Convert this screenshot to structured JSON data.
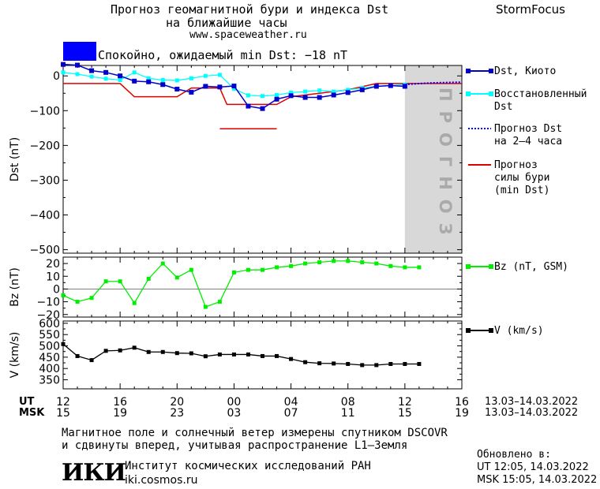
{
  "header": {
    "title_line1": "Прогноз геомагнитной бури и индекса Dst",
    "title_line2": "на ближайшие часы",
    "site": "www.spaceweather.ru",
    "brand": "StormFocus",
    "status_text": "Спокойно, ожидаемый min Dst: −18 nT",
    "status_color": "#0000ff"
  },
  "forecast_band_label": "ПРОГНОЗ",
  "time_axis": {
    "ut_label": "UT",
    "msk_label": "MSK",
    "ut_ticks": [
      "12",
      "16",
      "20",
      "00",
      "04",
      "08",
      "12",
      "16"
    ],
    "msk_ticks": [
      "15",
      "19",
      "23",
      "03",
      "07",
      "11",
      "15",
      "19"
    ],
    "ut_range": "13.03–14.03.2022",
    "msk_range": "13.03–14.03.2022"
  },
  "legend": {
    "dst": "Dst, Киото",
    "restored_line1": "Восстановленный",
    "restored_line2": "Dst",
    "forecast_line1": "Прогноз Dst",
    "forecast_line2": "на 2–4 часа",
    "storm_line1": "Прогноз",
    "storm_line2": "силы бури",
    "storm_line3": "(min Dst)",
    "bz": "Bz (nT, GSM)",
    "v": "V (km/s)"
  },
  "colors": {
    "dst": "#0000cc",
    "restored": "#00ffff",
    "forecast": "#0000ff",
    "storm": "#dd0000",
    "bz": "#00ee00",
    "v": "#000000",
    "band": "#d8d8d8"
  },
  "chart_data": [
    {
      "type": "line",
      "ylabel": "Dst (nT)",
      "ylim": [
        -510,
        30
      ],
      "yticks": [
        0,
        -100,
        -200,
        -300,
        -400,
        -500
      ],
      "x_hours_range": [
        0,
        28
      ],
      "forecast_start_hour": 24,
      "series": [
        {
          "name": "Dst, Киото",
          "key": "dst",
          "x": [
            0,
            1,
            2,
            3,
            4,
            5,
            6,
            7,
            8,
            9,
            10,
            11,
            12,
            13,
            14,
            15,
            16,
            17,
            18,
            19,
            20,
            21,
            22,
            23,
            24
          ],
          "y": [
            33,
            31,
            15,
            10,
            0,
            -15,
            -17,
            -25,
            -38,
            -47,
            -30,
            -32,
            -29,
            -87,
            -94,
            -67,
            -57,
            -62,
            -62,
            -55,
            -48,
            -40,
            -30,
            -28,
            -30
          ]
        },
        {
          "name": "Восстановленный Dst",
          "key": "restored",
          "x": [
            0,
            1,
            2,
            3,
            4,
            5,
            6,
            7,
            8,
            9,
            10,
            11,
            12,
            13,
            14,
            15,
            16,
            17,
            18,
            19,
            20,
            21,
            22,
            23,
            24
          ],
          "y": [
            10,
            5,
            -2,
            -8,
            -12,
            10,
            -7,
            -12,
            -13,
            -7,
            0,
            3,
            -37,
            -56,
            -58,
            -55,
            -48,
            -45,
            -42,
            -45,
            -40,
            -35,
            -30,
            -28,
            -25
          ]
        },
        {
          "name": "Прогноз Dst на 2–4 часа",
          "key": "forecast",
          "x": [
            24,
            25,
            26,
            27,
            28
          ],
          "y": [
            -25,
            -22,
            -20,
            -19,
            -18
          ]
        },
        {
          "name": "Прогноз силы бури (min Dst)",
          "key": "storm",
          "x": [
            0,
            4,
            5,
            8,
            9,
            11,
            11.5,
            13,
            14,
            14.5,
            15,
            16,
            18,
            20,
            22,
            23,
            28
          ],
          "y": [
            -22,
            -22,
            -60,
            -60,
            -35,
            -35,
            -82,
            -82,
            -82,
            -82,
            -82,
            -60,
            -50,
            -40,
            -22,
            -22,
            -22
          ]
        },
        {
          "name": "storm-segment",
          "key": "storm2",
          "x": [
            11,
            15
          ],
          "y": [
            -152,
            -152
          ]
        }
      ]
    },
    {
      "type": "line",
      "ylabel": "Bz (nT)",
      "ylim": [
        -22,
        25
      ],
      "yticks": [
        20,
        10,
        0,
        -10,
        -20
      ],
      "series": [
        {
          "name": "Bz (nT, GSM)",
          "key": "bz",
          "x": [
            0,
            1,
            2,
            3,
            4,
            5,
            6,
            7,
            8,
            9,
            10,
            11,
            12,
            13,
            14,
            15,
            16,
            17,
            18,
            19,
            20,
            21,
            22,
            23,
            24,
            25
          ],
          "y": [
            -5,
            -10,
            -7,
            6,
            6,
            -11,
            8,
            20,
            9,
            15,
            -14,
            -10,
            13,
            15,
            15,
            17,
            18,
            20,
            21,
            22,
            22,
            21,
            20,
            18,
            17,
            17
          ]
        }
      ]
    },
    {
      "type": "line",
      "ylabel": "V (km/s)",
      "ylim": [
        310,
        610
      ],
      "yticks": [
        600,
        550,
        500,
        450,
        400,
        350
      ],
      "series": [
        {
          "name": "V (km/s)",
          "key": "v",
          "x": [
            0,
            1,
            2,
            3,
            4,
            5,
            6,
            7,
            8,
            9,
            10,
            11,
            12,
            13,
            14,
            15,
            16,
            17,
            18,
            19,
            20,
            21,
            22,
            23,
            24,
            25
          ],
          "y": [
            508,
            455,
            437,
            478,
            480,
            492,
            473,
            473,
            468,
            467,
            454,
            462,
            462,
            462,
            455,
            455,
            442,
            428,
            423,
            422,
            420,
            415,
            415,
            420,
            420,
            420
          ]
        }
      ]
    }
  ],
  "footer": {
    "line1": "Магнитное поле и солнечный ветер измерены спутником DSCOVR",
    "line2": "и сдвинуты вперед, учитывая распространение L1–Земля",
    "logo": "ИКИ",
    "institute": "Институт космических исследований РАН",
    "institute_site": "iki.cosmos.ru",
    "updated_label": "Обновлено в:",
    "updated_ut": "UT  12:05, 14.03.2022",
    "updated_msk": "MSK 15:05, 14.03.2022"
  }
}
